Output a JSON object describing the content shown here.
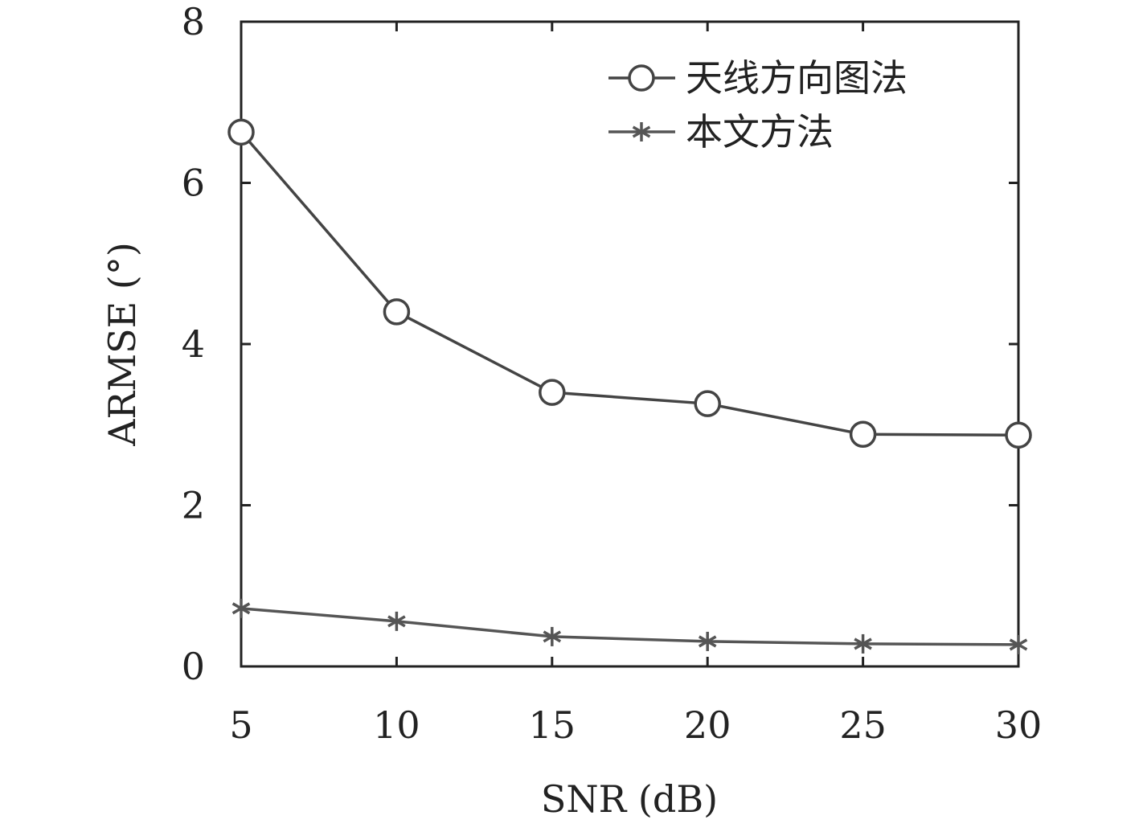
{
  "chart_data": {
    "type": "line",
    "xlabel": "SNR (dB)",
    "ylabel": "ARMSE (°)",
    "x": [
      5,
      10,
      15,
      20,
      25,
      30
    ],
    "xlim": [
      5,
      30
    ],
    "ylim": [
      0,
      8
    ],
    "xticks": [
      "5",
      "10",
      "15",
      "20",
      "25",
      "30"
    ],
    "yticks": [
      "0",
      "2",
      "4",
      "6",
      "8"
    ],
    "grid": false,
    "legend_position": "top-right",
    "series": [
      {
        "name": "天线方向图法",
        "marker": "circle",
        "color": "#444444",
        "values": [
          6.63,
          4.4,
          3.4,
          3.26,
          2.88,
          2.87
        ]
      },
      {
        "name": "本文方法",
        "marker": "asterisk",
        "color": "#555555",
        "values": [
          0.72,
          0.56,
          0.37,
          0.31,
          0.28,
          0.27
        ]
      }
    ]
  }
}
